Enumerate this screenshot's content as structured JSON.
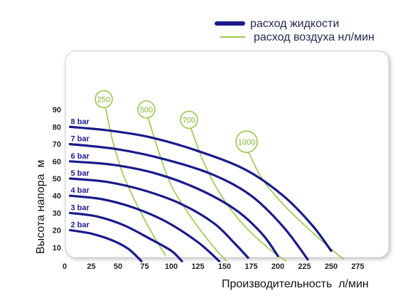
{
  "legend": {
    "liquid_label": "расход жидкости",
    "air_label": "расход воздуха нл/мин",
    "liquid_color": "#1a1a8c",
    "air_color": "#9ac94a"
  },
  "chart_data": {
    "type": "line",
    "xlabel": "Производительность  л/мин",
    "ylabel": "Высота напора  м",
    "xlim": [
      0,
      300
    ],
    "ylim": [
      0,
      100
    ],
    "xticks": [
      "0",
      "25",
      "50",
      "75",
      "100",
      "125",
      "150",
      "175",
      "200",
      "225",
      "250",
      "275"
    ],
    "yticks": [
      "10",
      "20",
      "30",
      "40",
      "50",
      "60",
      "70",
      "80",
      "90"
    ],
    "grid": false,
    "legend_position": "top",
    "pressure_series": [
      {
        "name": "2 bar",
        "points": [
          [
            5,
            20
          ],
          [
            25,
            18
          ],
          [
            45,
            14
          ],
          [
            60,
            9
          ],
          [
            72,
            2
          ]
        ]
      },
      {
        "name": "3 bar",
        "points": [
          [
            5,
            30
          ],
          [
            30,
            28
          ],
          [
            55,
            23
          ],
          [
            80,
            15
          ],
          [
            100,
            8
          ],
          [
            110,
            2
          ]
        ]
      },
      {
        "name": "4 bar",
        "points": [
          [
            5,
            40
          ],
          [
            35,
            38
          ],
          [
            65,
            33
          ],
          [
            95,
            25
          ],
          [
            125,
            13
          ],
          [
            145,
            2
          ]
        ]
      },
      {
        "name": "5 bar",
        "points": [
          [
            5,
            50
          ],
          [
            40,
            48
          ],
          [
            75,
            43
          ],
          [
            110,
            35
          ],
          [
            140,
            24
          ],
          [
            160,
            12
          ],
          [
            172,
            4
          ]
        ]
      },
      {
        "name": "6 bar",
        "points": [
          [
            5,
            60
          ],
          [
            45,
            58
          ],
          [
            85,
            53
          ],
          [
            125,
            44
          ],
          [
            160,
            32
          ],
          [
            185,
            18
          ],
          [
            200,
            5
          ]
        ]
      },
      {
        "name": "7 bar",
        "points": [
          [
            5,
            70
          ],
          [
            50,
            67
          ],
          [
            95,
            61
          ],
          [
            140,
            52
          ],
          [
            175,
            40
          ],
          [
            205,
            22
          ],
          [
            228,
            3
          ]
        ]
      },
      {
        "name": "8 bar",
        "points": [
          [
            5,
            80
          ],
          [
            40,
            78
          ],
          [
            80,
            74
          ],
          [
            125,
            66
          ],
          [
            170,
            55
          ],
          [
            205,
            40
          ],
          [
            232,
            23
          ],
          [
            250,
            8
          ]
        ]
      }
    ],
    "air_series": [
      {
        "name": "250",
        "points": [
          [
            38,
            92
          ],
          [
            45,
            72
          ],
          [
            55,
            52
          ],
          [
            70,
            32
          ],
          [
            85,
            15
          ],
          [
            95,
            5
          ]
        ]
      },
      {
        "name": "500",
        "points": [
          [
            78,
            86
          ],
          [
            88,
            66
          ],
          [
            100,
            46
          ],
          [
            118,
            28
          ],
          [
            140,
            10
          ],
          [
            152,
            2
          ]
        ]
      },
      {
        "name": "700",
        "points": [
          [
            118,
            80
          ],
          [
            130,
            60
          ],
          [
            145,
            42
          ],
          [
            165,
            25
          ],
          [
            190,
            10
          ],
          [
            208,
            2
          ]
        ]
      },
      {
        "name": "1000",
        "points": [
          [
            172,
            66
          ],
          [
            185,
            50
          ],
          [
            205,
            35
          ],
          [
            230,
            20
          ],
          [
            252,
            8
          ],
          [
            262,
            3
          ]
        ]
      }
    ]
  }
}
